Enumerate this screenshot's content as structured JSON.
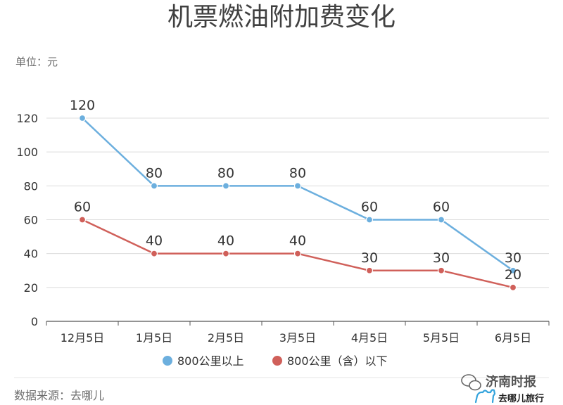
{
  "chart_data": {
    "type": "line",
    "title": "机票燃油附加费变化",
    "unit_label": "单位：元",
    "categories": [
      "12月5日",
      "1月5日",
      "2月5日",
      "3月5日",
      "4月5日",
      "5月5日",
      "6月5日"
    ],
    "series": [
      {
        "name": "800公里以上",
        "values": [
          120,
          80,
          80,
          80,
          60,
          60,
          30
        ],
        "color": "#6cafde"
      },
      {
        "name": "800公里（含）以下",
        "values": [
          60,
          40,
          40,
          40,
          30,
          30,
          20
        ],
        "color": "#d0605a"
      }
    ],
    "ylim": [
      0,
      120
    ],
    "yticks": [
      0,
      20,
      40,
      60,
      80,
      100,
      120
    ],
    "grid": true,
    "legend_position": "bottom-center",
    "source": "数据来源：去哪儿"
  },
  "watermark": {
    "name": "济南时报",
    "brand": "去哪儿旅行",
    "icons": [
      "wechat-icon",
      "camel-icon"
    ]
  }
}
